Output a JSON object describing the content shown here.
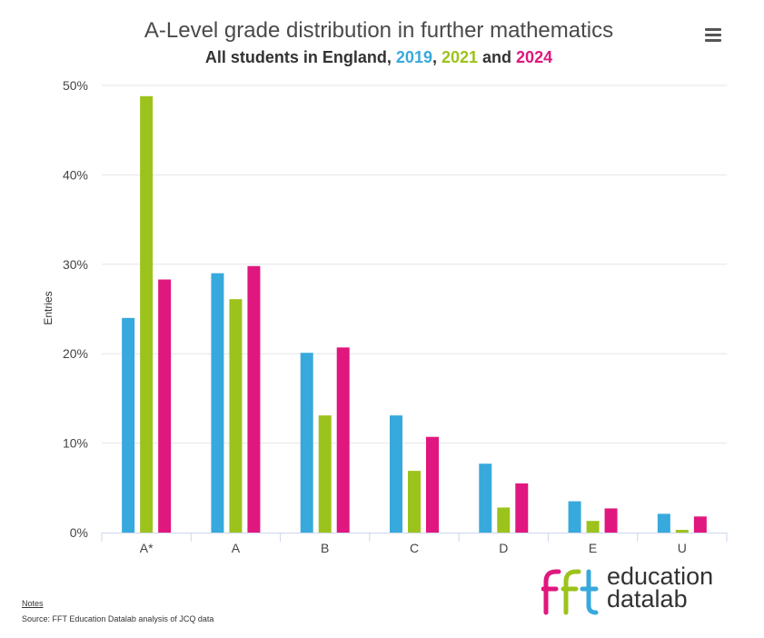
{
  "header": {
    "title": "A-Level grade distribution in further mathematics",
    "subtitle_prefix": "All students in England, ",
    "subtitle_y1": "2019",
    "subtitle_sep1": ", ",
    "subtitle_y2": "2021",
    "subtitle_sep2": " and ",
    "subtitle_y3": "2024"
  },
  "chart_data": {
    "type": "bar",
    "title": "A-Level grade distribution in further mathematics",
    "subtitle": "All students in England, 2019, 2021 and 2024",
    "ylabel": "Entries",
    "xlabel": "",
    "categories": [
      "A*",
      "A",
      "B",
      "C",
      "D",
      "E",
      "U"
    ],
    "ylim": [
      0,
      50
    ],
    "yticks": [
      0,
      10,
      20,
      30,
      40,
      50
    ],
    "ytick_labels": [
      "0%",
      "10%",
      "20%",
      "30%",
      "40%",
      "50%"
    ],
    "grid": true,
    "legend": "none (years coloured in subtitle)",
    "series": [
      {
        "name": "2019",
        "color": "#38a9dc",
        "values": [
          24.0,
          29.0,
          20.1,
          13.1,
          7.7,
          3.5,
          2.1
        ]
      },
      {
        "name": "2021",
        "color": "#9cc31c",
        "values": [
          48.8,
          26.1,
          13.1,
          6.9,
          2.8,
          1.3,
          0.3
        ]
      },
      {
        "name": "2024",
        "color": "#e0177e",
        "values": [
          28.3,
          29.8,
          20.7,
          10.7,
          5.5,
          2.7,
          1.8
        ]
      }
    ]
  },
  "footer": {
    "notes_label": "Notes",
    "source": "Source: FFT Education Datalab analysis of JCQ data"
  },
  "logo": {
    "mark": "fft",
    "line1": "education",
    "line2": "datalab",
    "colors": [
      "#e0177e",
      "#9cc31c",
      "#38a9dc"
    ]
  }
}
